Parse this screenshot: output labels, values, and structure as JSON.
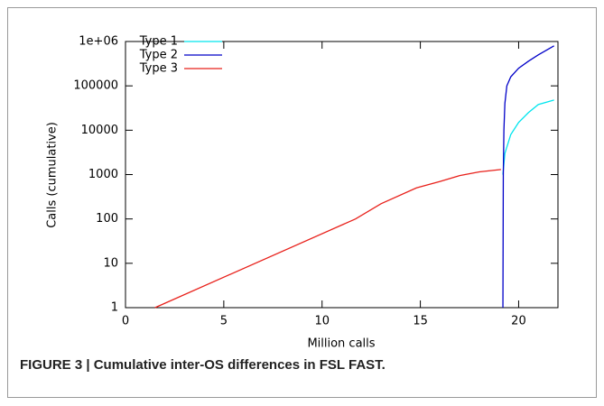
{
  "chart_data": {
    "type": "line",
    "caption": "FIGURE 3 | Cumulative inter-OS differences in FSL FAST.",
    "xlabel": "Million calls",
    "ylabel": "Calls (cumulative)",
    "xlim": [
      0,
      22
    ],
    "xticks": [
      0,
      5,
      10,
      15,
      20
    ],
    "ylim": [
      1,
      1000000
    ],
    "yscale": "log",
    "yticks": [
      1,
      10,
      100,
      1000,
      10000,
      100000,
      {
        "value": 1000000,
        "label": "1e+06"
      }
    ],
    "legend": "top-left",
    "series": [
      {
        "name": "Type 1",
        "color": "#00e5ee",
        "x": [
          19.2,
          19.3,
          19.6,
          20,
          20.5,
          21,
          21.8
        ],
        "values": [
          1000,
          3000,
          8000,
          15000,
          25000,
          38000,
          48000
        ]
      },
      {
        "name": "Type 2",
        "color": "#0000c8",
        "x": [
          19.2,
          19.22,
          19.25,
          19.3,
          19.4,
          19.6,
          20,
          20.5,
          21,
          21.8
        ],
        "values": [
          1,
          1000,
          10000,
          40000,
          100000,
          160000,
          250000,
          360000,
          500000,
          800000
        ]
      },
      {
        "name": "Type 3",
        "color": "#e8201a",
        "x": [
          1.5,
          11.7,
          13,
          14.8,
          16,
          17,
          18,
          19.1
        ],
        "values": [
          1,
          100,
          220,
          500,
          700,
          950,
          1150,
          1300
        ]
      }
    ]
  }
}
